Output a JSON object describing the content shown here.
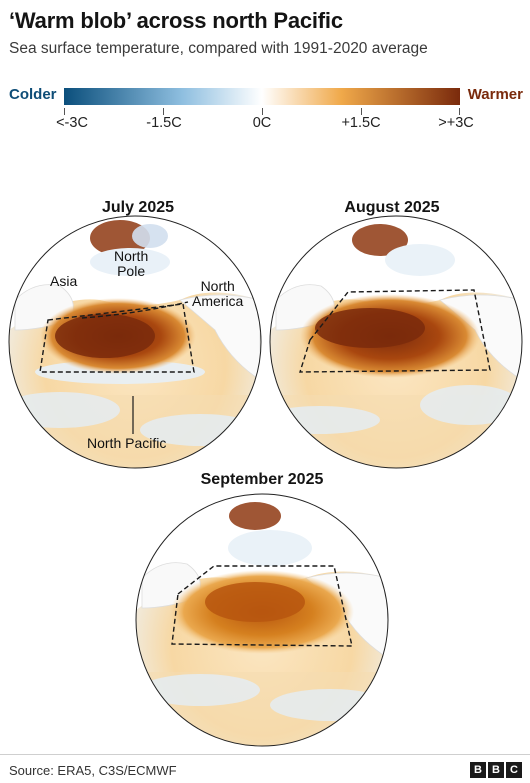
{
  "header": {
    "title": "‘Warm blob’ across north Pacific",
    "subtitle": "Sea surface temperature, compared with 1991-2020 average"
  },
  "legend": {
    "colder_label": "Colder",
    "warmer_label": "Warmer",
    "ticks": [
      "<-3C",
      "-1.5C",
      "0C",
      "+1.5C",
      ">+3C"
    ],
    "colors": {
      "cold_end": "#0b4f7c",
      "cold_mid": "#8fbfe0",
      "neutral": "#ffffff",
      "warm_mid": "#f0a94a",
      "warm_end": "#7a2a0c"
    }
  },
  "maps": [
    {
      "title": "July 2025",
      "anomaly_level": 0.9
    },
    {
      "title": "August 2025",
      "anomaly_level": 0.85
    },
    {
      "title": "September 2025",
      "anomaly_level": 0.7
    }
  ],
  "annotations": {
    "asia": "Asia",
    "north_pole_1": "North",
    "north_pole_2": "Pole",
    "north_america_1": "North",
    "north_america_2": "America",
    "north_pacific": "North Pacific"
  },
  "footer": {
    "source": "Source: ERA5, C3S/ECMWF",
    "logo_letters": [
      "B",
      "B",
      "C"
    ]
  }
}
